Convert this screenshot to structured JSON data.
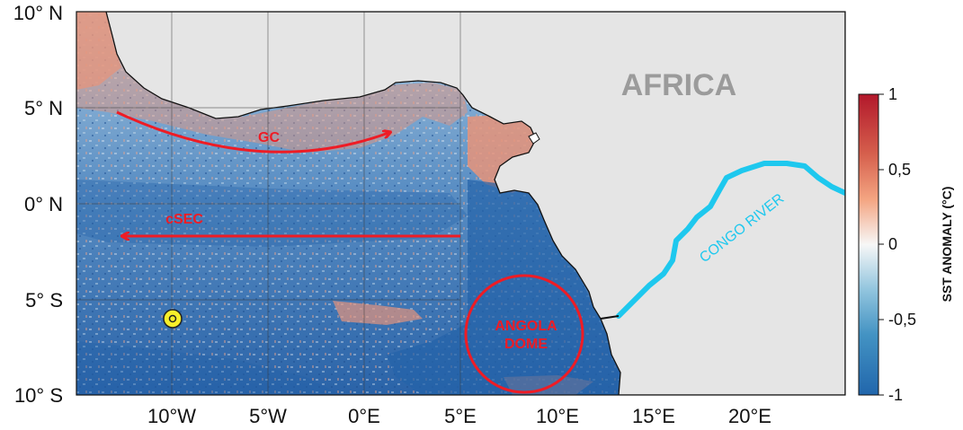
{
  "map": {
    "lat_labels": [
      "10° N",
      "5° N",
      "0° N",
      "5° S",
      "10° S"
    ],
    "lon_labels": [
      "10°W",
      "5°W",
      "0°E",
      "5°E",
      "10°E",
      "15°E",
      "20°E"
    ],
    "land_label": "AFRICA",
    "river_label": "CONGO RIVER",
    "currents": [
      {
        "label": "GC"
      },
      {
        "label": "cSEC"
      }
    ],
    "dome_label_line1": "ANGOLA",
    "dome_label_line2": "DOME",
    "colors": {
      "land": "#e5e5e5",
      "ocean_cool": "#5d93c6",
      "ocean_warm": "#e8947a",
      "currents": "#ee1c25",
      "river": "#1ec8ee",
      "marker": "#f8ef2a",
      "land_label": "#9b9b9b"
    }
  },
  "colorbar": {
    "title": "SST ANOMALY (°C)",
    "ticks": [
      "1",
      "0,5",
      "0",
      "-0,5",
      "-1"
    ],
    "range": [
      -1,
      1
    ],
    "colors": [
      "#b2182b",
      "#ef8a62",
      "#fddbc7",
      "#f7f7f7",
      "#d1e5f0",
      "#67a9cf",
      "#2166ac"
    ]
  }
}
